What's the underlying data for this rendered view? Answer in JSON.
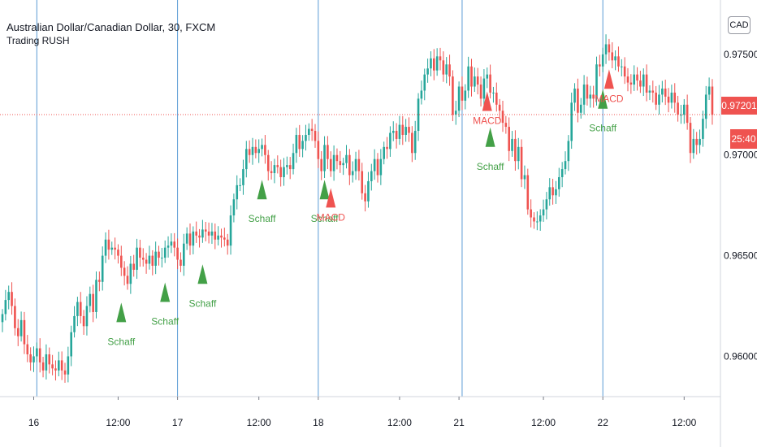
{
  "header": {
    "title": "Australian Dollar/Canadian Dollar, 30, FXCM",
    "indicator": "Trading RUSH",
    "currency": "CAD"
  },
  "price_tags": {
    "last_price": "0.97201",
    "countdown": "25:40"
  },
  "colors": {
    "up": "#26a69a",
    "down": "#ef5350",
    "buy_signal": "#43a047",
    "sell_signal": "#ef5350",
    "session_line": "#5b9bd5",
    "price_line": "#ef5350"
  },
  "chart_data": {
    "type": "candlestick",
    "y_ticks": [
      "0.97500",
      "0.97000",
      "0.96500",
      "0.96000"
    ],
    "y_tick_values": [
      0.975,
      0.97,
      0.965,
      0.96
    ],
    "ylim": [
      0.958,
      0.9777
    ],
    "x_ticks": [
      "16",
      "12:00",
      "17",
      "12:00",
      "18",
      "12:00",
      "21",
      "12:00",
      "22",
      "12:00"
    ],
    "x_tick_bars": [
      10,
      37,
      56,
      82,
      101,
      127,
      146,
      173,
      192,
      218
    ],
    "session_starts": [
      11,
      56,
      101,
      147,
      192
    ],
    "last_price": 0.97201,
    "closes": [
      0.9621,
      0.9628,
      0.9632,
      0.9625,
      0.9614,
      0.961,
      0.9618,
      0.9606,
      0.9601,
      0.9597,
      0.96,
      0.9604,
      0.9597,
      0.9593,
      0.9601,
      0.9596,
      0.9594,
      0.9593,
      0.9598,
      0.9593,
      0.9591,
      0.96,
      0.9612,
      0.962,
      0.9627,
      0.962,
      0.9615,
      0.9625,
      0.9631,
      0.9622,
      0.9638,
      0.9637,
      0.965,
      0.9658,
      0.9653,
      0.9654,
      0.9653,
      0.965,
      0.9644,
      0.964,
      0.9636,
      0.9646,
      0.9643,
      0.9654,
      0.9649,
      0.9648,
      0.9646,
      0.965,
      0.9645,
      0.9652,
      0.9649,
      0.9649,
      0.9654,
      0.9655,
      0.9657,
      0.9654,
      0.9648,
      0.9645,
      0.9656,
      0.9661,
      0.9655,
      0.9662,
      0.966,
      0.9659,
      0.9663,
      0.9662,
      0.966,
      0.9662,
      0.9658,
      0.966,
      0.9659,
      0.9658,
      0.9655,
      0.967,
      0.9678,
      0.9685,
      0.9685,
      0.9693,
      0.9703,
      0.97,
      0.9704,
      0.9701,
      0.9703,
      0.9705,
      0.97,
      0.9692,
      0.9691,
      0.9695,
      0.9694,
      0.9689,
      0.9694,
      0.9695,
      0.9693,
      0.9701,
      0.971,
      0.9703,
      0.9707,
      0.971,
      0.9713,
      0.9712,
      0.9707,
      0.9698,
      0.9692,
      0.9705,
      0.9698,
      0.9692,
      0.97,
      0.9697,
      0.9695,
      0.9696,
      0.97,
      0.969,
      0.9692,
      0.9698,
      0.9692,
      0.9681,
      0.9677,
      0.9687,
      0.9692,
      0.9698,
      0.969,
      0.9698,
      0.9704,
      0.9703,
      0.9711,
      0.9712,
      0.9708,
      0.9715,
      0.971,
      0.9714,
      0.9711,
      0.9701,
      0.9712,
      0.9728,
      0.9732,
      0.974,
      0.9743,
      0.9748,
      0.9742,
      0.9749,
      0.9747,
      0.974,
      0.9745,
      0.9739,
      0.972,
      0.9722,
      0.9734,
      0.9727,
      0.9732,
      0.9744,
      0.9734,
      0.9739,
      0.9735,
      0.9728,
      0.9738,
      0.974,
      0.9731,
      0.9731,
      0.9725,
      0.9722,
      0.9716,
      0.9714,
      0.9702,
      0.9708,
      0.9697,
      0.9704,
      0.9688,
      0.969,
      0.9673,
      0.9669,
      0.9667,
      0.9667,
      0.967,
      0.9673,
      0.9678,
      0.9684,
      0.968,
      0.9683,
      0.9689,
      0.9693,
      0.9697,
      0.9707,
      0.9726,
      0.9733,
      0.9721,
      0.9725,
      0.9735,
      0.9728,
      0.973,
      0.9728,
      0.9745,
      0.9744,
      0.975,
      0.9755,
      0.9751,
      0.9747,
      0.9749,
      0.9744,
      0.9744,
      0.9739,
      0.9736,
      0.9735,
      0.974,
      0.9737,
      0.9734,
      0.974,
      0.9731,
      0.9732,
      0.9731,
      0.9725,
      0.973,
      0.9733,
      0.9729,
      0.9726,
      0.9731,
      0.9726,
      0.972,
      0.972,
      0.9725,
      0.9716,
      0.9701,
      0.9708,
      0.9705,
      0.9708,
      0.9718,
      0.973,
      0.9734,
      0.972
    ],
    "signals": [
      {
        "bar": 38,
        "type": "buy",
        "label": "Schaff"
      },
      {
        "bar": 52,
        "type": "buy",
        "label": "Schaff"
      },
      {
        "bar": 64,
        "type": "buy",
        "label": "Schaff"
      },
      {
        "bar": 83,
        "type": "buy",
        "label": "Schaff"
      },
      {
        "bar": 103,
        "type": "buy",
        "label": "Schaff"
      },
      {
        "bar": 105,
        "type": "sell",
        "label": "MACD"
      },
      {
        "bar": 155,
        "type": "sell",
        "label": "MACD"
      },
      {
        "bar": 156,
        "type": "buy",
        "label": "Schaff"
      },
      {
        "bar": 192,
        "type": "buy",
        "label": "Schaff"
      },
      {
        "bar": 194,
        "type": "sell",
        "label": "MACD"
      }
    ]
  }
}
